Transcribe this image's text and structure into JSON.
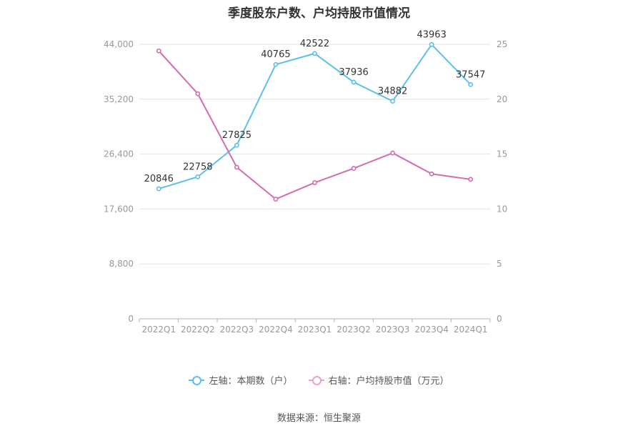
{
  "chart_data": {
    "type": "line",
    "title": "季度股东户数、户均持股市值情况",
    "categories": [
      "2022Q1",
      "2022Q2",
      "2022Q3",
      "2022Q4",
      "2023Q1",
      "2023Q2",
      "2023Q3",
      "2023Q4",
      "2024Q1"
    ],
    "y_left": {
      "ticks": [
        "0",
        "8,800",
        "17,600",
        "26,400",
        "35,200",
        "44,000"
      ],
      "ylim": [
        0,
        44000
      ]
    },
    "y_right": {
      "ticks": [
        "0",
        "5",
        "10",
        "15",
        "20",
        "25"
      ],
      "ylim": [
        0,
        25
      ]
    },
    "series": [
      {
        "name": "左轴：本期数（户）",
        "axis": "left",
        "color": "#5bc0eb",
        "values": [
          20846,
          22758,
          27825,
          40765,
          42522,
          37936,
          34882,
          43963,
          37547
        ],
        "labels": [
          "20846",
          "22758",
          "27825",
          "40765",
          "42522",
          "37936",
          "34882",
          "43963",
          "37547"
        ]
      },
      {
        "name": "右轴：户均持股市值（万元）",
        "axis": "right",
        "color": "#d46bad",
        "values": [
          24.4,
          20.5,
          13.8,
          10.9,
          12.4,
          13.7,
          15.1,
          13.2,
          12.7
        ]
      }
    ],
    "grid": true,
    "legend_position": "bottom"
  },
  "footer": {
    "source": "数据来源：恒生聚源"
  }
}
